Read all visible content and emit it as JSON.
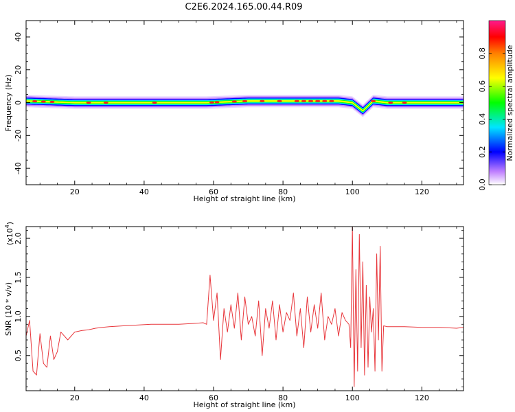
{
  "title": "C2E6.2024.165.00.44.R09",
  "chart_data": [
    {
      "type": "heatmap",
      "name": "spectrogram",
      "xlabel": "Height of straight line (km)",
      "ylabel": "Frequency (Hz)",
      "xlim": [
        6,
        132
      ],
      "ylim": [
        -50,
        50
      ],
      "xticks": [
        20,
        40,
        60,
        80,
        100,
        120
      ],
      "yticks": [
        -40,
        -20,
        0,
        20,
        40
      ],
      "colorbar": {
        "label": "Normalized spectral amplitude",
        "range": [
          0,
          1
        ],
        "ticks": [
          0.0,
          0.2,
          0.4,
          0.6,
          0.8
        ],
        "colors": [
          "#ffffff",
          "#c080ff",
          "#0000ff",
          "#00e5ff",
          "#00ff00",
          "#ffff00",
          "#ff8000",
          "#ff0000",
          "#ff1a8c"
        ]
      },
      "band_center_hz": [
        {
          "x": 6,
          "f": 1
        },
        {
          "x": 20,
          "f": 0
        },
        {
          "x": 40,
          "f": 0
        },
        {
          "x": 58,
          "f": 0
        },
        {
          "x": 70,
          "f": 1
        },
        {
          "x": 85,
          "f": 1
        },
        {
          "x": 96,
          "f": 1
        },
        {
          "x": 100,
          "f": 0
        },
        {
          "x": 103,
          "f": -5
        },
        {
          "x": 106,
          "f": 1
        },
        {
          "x": 110,
          "f": 0
        },
        {
          "x": 120,
          "f": 0
        },
        {
          "x": 132,
          "f": 0
        }
      ]
    },
    {
      "type": "line",
      "name": "snr",
      "xlabel": "Height of straight line (km)",
      "ylabel": "SNR (10 * v/v)",
      "yscale_label": "(x10",
      "yscale_exp": "4",
      "yscale_close": ")",
      "xlim": [
        6,
        132
      ],
      "ylim": [
        0.05,
        2.15
      ],
      "xticks": [
        20,
        40,
        60,
        80,
        100,
        120
      ],
      "yticks": [
        0.5,
        1.0,
        1.5,
        2.0
      ],
      "color": "#e8363b",
      "x": [
        6,
        7,
        8,
        9,
        10,
        11,
        12,
        13,
        14,
        15,
        16,
        18,
        20,
        22,
        24,
        26,
        28,
        30,
        34,
        38,
        42,
        46,
        50,
        54,
        57,
        58,
        59,
        60,
        61,
        62,
        63,
        64,
        65,
        66,
        67,
        68,
        69,
        70,
        71,
        72,
        73,
        74,
        75,
        76,
        77,
        78,
        79,
        80,
        81,
        82,
        83,
        84,
        85,
        86,
        87,
        88,
        89,
        90,
        91,
        92,
        93,
        94,
        95,
        96,
        97,
        98,
        99,
        99.5,
        100,
        100.5,
        101,
        101.5,
        102,
        102.5,
        103,
        103.5,
        104,
        104.5,
        105,
        105.5,
        106,
        106.5,
        107,
        107.5,
        108,
        108.5,
        109,
        110,
        115,
        120,
        125,
        130,
        132
      ],
      "y": [
        0.75,
        0.95,
        0.3,
        0.25,
        0.78,
        0.4,
        0.35,
        0.75,
        0.45,
        0.55,
        0.8,
        0.7,
        0.8,
        0.82,
        0.83,
        0.85,
        0.86,
        0.87,
        0.88,
        0.89,
        0.9,
        0.9,
        0.9,
        0.91,
        0.92,
        0.9,
        1.53,
        0.95,
        1.3,
        0.45,
        1.1,
        0.8,
        1.15,
        0.85,
        1.3,
        0.7,
        1.25,
        0.9,
        1.0,
        0.75,
        1.2,
        0.5,
        1.1,
        0.85,
        1.2,
        0.7,
        1.15,
        0.8,
        1.05,
        0.95,
        1.3,
        0.75,
        1.1,
        0.6,
        1.25,
        0.8,
        1.15,
        0.85,
        1.3,
        0.7,
        1.0,
        0.9,
        1.1,
        0.75,
        1.05,
        0.95,
        0.9,
        0.6,
        2.15,
        0.1,
        1.6,
        0.3,
        2.05,
        0.6,
        1.7,
        0.25,
        1.4,
        0.35,
        1.25,
        0.8,
        1.1,
        0.3,
        1.8,
        0.7,
        1.9,
        0.3,
        0.88,
        0.87,
        0.87,
        0.86,
        0.86,
        0.85,
        0.86
      ]
    }
  ]
}
